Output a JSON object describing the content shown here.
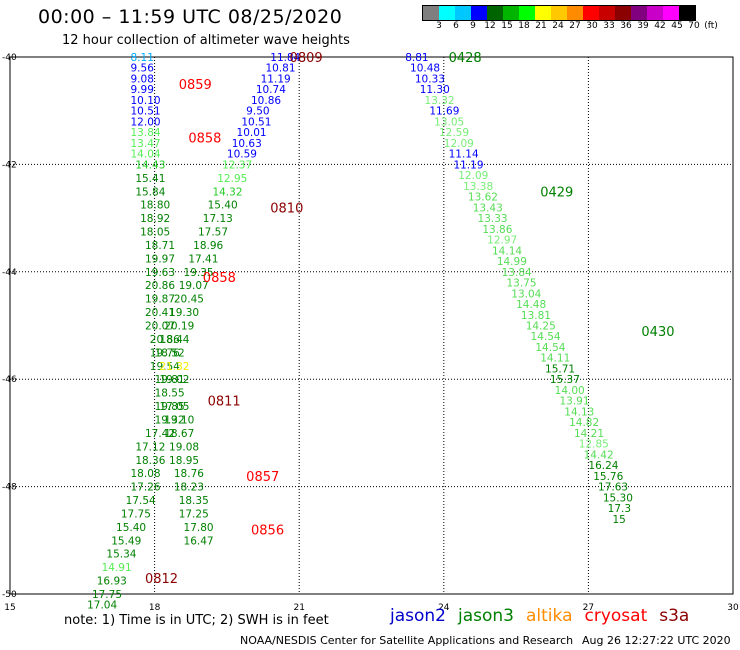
{
  "title": "00:00 – 11:59 UTC 08/25/2020",
  "subtitle": "12 hour collection of altimeter wave heights",
  "colorbar": {
    "colors": [
      "#7f7f7f",
      "#00ffff",
      "#00c8ff",
      "#0000ff",
      "#006400",
      "#00b400",
      "#00ff00",
      "#ffff00",
      "#ffc800",
      "#ff8c00",
      "#ff0000",
      "#c80000",
      "#8b0000",
      "#800080",
      "#c800c8",
      "#ff00ff",
      "#000000"
    ],
    "labels": [
      "3",
      "6",
      "9",
      "12",
      "15",
      "18",
      "21",
      "24",
      "27",
      "30",
      "33",
      "36",
      "39",
      "42",
      "45",
      "70",
      "(ft)"
    ]
  },
  "x_ticks": [
    "15",
    "18",
    "21",
    "24",
    "27",
    "30"
  ],
  "y_ticks": [
    "-40",
    "-42",
    "-44",
    "-46",
    "-48",
    "-50"
  ],
  "passes": [
    {
      "label": "0809",
      "lon": 20.8,
      "lat": -40.0,
      "color": "#8b0000"
    },
    {
      "label": "0859",
      "lon": 18.5,
      "lat": -40.5,
      "color": "#ff0000"
    },
    {
      "label": "0858",
      "lon": 18.7,
      "lat": -41.5,
      "color": "#ff0000"
    },
    {
      "label": "0810",
      "lon": 20.4,
      "lat": -42.8,
      "color": "#8b0000"
    },
    {
      "label": "0858",
      "lon": 19.0,
      "lat": -44.1,
      "color": "#ff0000"
    },
    {
      "label": "0811",
      "lon": 19.1,
      "lat": -46.4,
      "color": "#8b0000"
    },
    {
      "label": "0857",
      "lon": 19.9,
      "lat": -47.8,
      "color": "#ff0000"
    },
    {
      "label": "0856",
      "lon": 20.0,
      "lat": -48.8,
      "color": "#ff0000"
    },
    {
      "label": "0812",
      "lon": 17.8,
      "lat": -49.7,
      "color": "#8b0000"
    },
    {
      "label": "0428",
      "lon": 24.1,
      "lat": -40.0,
      "color": "#008000"
    },
    {
      "label": "0429",
      "lon": 26.0,
      "lat": -42.5,
      "color": "#008000"
    },
    {
      "label": "0430",
      "lon": 28.1,
      "lat": -45.1,
      "color": "#008000"
    }
  ],
  "points": [
    [
      17.5,
      -40.0,
      "8.11",
      "#00aaff"
    ],
    [
      17.5,
      -40.2,
      "9.56",
      "#0000ff"
    ],
    [
      17.5,
      -40.4,
      "9.08",
      "#0000ff"
    ],
    [
      17.5,
      -40.6,
      "9.99",
      "#0000ff"
    ],
    [
      17.5,
      -40.8,
      "10.10",
      "#0000ff"
    ],
    [
      17.5,
      -41.0,
      "10.51",
      "#0000ff"
    ],
    [
      17.5,
      -41.2,
      "12.00",
      "#0000ff"
    ],
    [
      17.5,
      -41.4,
      "13.84",
      "#55ee55"
    ],
    [
      17.5,
      -41.6,
      "13.47",
      "#55ee55"
    ],
    [
      17.5,
      -41.8,
      "14.04",
      "#55ee55"
    ],
    [
      17.6,
      -42.0,
      "14.43",
      "#22cc22"
    ],
    [
      17.6,
      -42.25,
      "15.41",
      "#008000"
    ],
    [
      17.6,
      -42.5,
      "15.84",
      "#008000"
    ],
    [
      17.7,
      -42.75,
      "18.80",
      "#008000"
    ],
    [
      17.7,
      -43.0,
      "18.92",
      "#008000"
    ],
    [
      17.7,
      -43.25,
      "18.05",
      "#008000"
    ],
    [
      17.8,
      -43.5,
      "18.71",
      "#008000"
    ],
    [
      17.8,
      -43.75,
      "19.97",
      "#008000"
    ],
    [
      17.8,
      -44.0,
      "19.63",
      "#008000"
    ],
    [
      17.8,
      -44.25,
      "20.86",
      "#008000"
    ],
    [
      17.8,
      -44.5,
      "19.87",
      "#008000"
    ],
    [
      17.8,
      -44.75,
      "20.41",
      "#008000"
    ],
    [
      17.8,
      -45.0,
      "20.07",
      "#008000"
    ],
    [
      17.9,
      -45.25,
      "20.86",
      "#008000"
    ],
    [
      17.9,
      -45.5,
      "19.76",
      "#008000"
    ],
    [
      17.9,
      -45.75,
      "19.54",
      "#008000"
    ],
    [
      18.0,
      -46.0,
      "19.81",
      "#008000"
    ],
    [
      18.0,
      -46.25,
      "18.55",
      "#008000"
    ],
    [
      18.0,
      -46.5,
      "19.85",
      "#008000"
    ],
    [
      18.0,
      -46.75,
      "19.32",
      "#008000"
    ],
    [
      17.8,
      -47.0,
      "17.42",
      "#008000"
    ],
    [
      17.6,
      -47.25,
      "17.12",
      "#008000"
    ],
    [
      17.6,
      -47.5,
      "18.36",
      "#008000"
    ],
    [
      17.5,
      -47.75,
      "18.08",
      "#008000"
    ],
    [
      17.5,
      -48.0,
      "17.26",
      "#008000"
    ],
    [
      17.4,
      -48.25,
      "17.54",
      "#008000"
    ],
    [
      17.3,
      -48.5,
      "17.75",
      "#008000"
    ],
    [
      17.2,
      -48.75,
      "15.40",
      "#008000"
    ],
    [
      17.1,
      -49.0,
      "15.49",
      "#008000"
    ],
    [
      17.0,
      -49.25,
      "15.34",
      "#008000"
    ],
    [
      16.9,
      -49.5,
      "14.91",
      "#55ee55"
    ],
    [
      16.8,
      -49.75,
      "16.93",
      "#008000"
    ],
    [
      16.7,
      -50.0,
      "17.75",
      "#008000"
    ],
    [
      16.6,
      -50.2,
      "17.04",
      "#008000"
    ],
    [
      20.4,
      -40.0,
      "11.84",
      "#0000ff"
    ],
    [
      20.3,
      -40.2,
      "10.81",
      "#0000ff"
    ],
    [
      20.2,
      -40.4,
      "11.19",
      "#0000ff"
    ],
    [
      20.1,
      -40.6,
      "10.74",
      "#0000ff"
    ],
    [
      20.0,
      -40.8,
      "10.86",
      "#0000ff"
    ],
    [
      19.9,
      -41.0,
      "9.50",
      "#0000ff"
    ],
    [
      19.8,
      -41.2,
      "10.51",
      "#0000ff"
    ],
    [
      19.7,
      -41.4,
      "10.01",
      "#0000ff"
    ],
    [
      19.6,
      -41.6,
      "10.63",
      "#0000ff"
    ],
    [
      19.5,
      -41.8,
      "10.59",
      "#0000ff"
    ],
    [
      19.4,
      -42.0,
      "12.37",
      "#55ee55"
    ],
    [
      19.3,
      -42.25,
      "12.95",
      "#55ee55"
    ],
    [
      19.2,
      -42.5,
      "14.32",
      "#22cc22"
    ],
    [
      19.1,
      -42.75,
      "15.40",
      "#008000"
    ],
    [
      19.0,
      -43.0,
      "17.13",
      "#008000"
    ],
    [
      18.9,
      -43.25,
      "17.57",
      "#008000"
    ],
    [
      18.8,
      -43.5,
      "18.96",
      "#008000"
    ],
    [
      18.7,
      -43.75,
      "17.41",
      "#008000"
    ],
    [
      18.6,
      -44.0,
      "19.35",
      "#008000"
    ],
    [
      18.5,
      -44.25,
      "19.07",
      "#008000"
    ],
    [
      18.4,
      -44.5,
      "20.45",
      "#008000"
    ],
    [
      18.3,
      -44.75,
      "19.30",
      "#008000"
    ],
    [
      18.2,
      -45.0,
      "20.19",
      "#008000"
    ],
    [
      18.1,
      -45.25,
      "18.44",
      "#008000"
    ],
    [
      18.0,
      -45.5,
      "18.52",
      "#008000"
    ],
    [
      18.1,
      -45.75,
      "21.32",
      "#eeee00"
    ],
    [
      18.1,
      -46.0,
      "19.02",
      "#008000"
    ],
    [
      18.1,
      -46.5,
      "17.05",
      "#008000"
    ],
    [
      18.2,
      -46.75,
      "19.10",
      "#008000"
    ],
    [
      18.2,
      -47.0,
      "18.67",
      "#008000"
    ],
    [
      18.3,
      -47.25,
      "19.08",
      "#008000"
    ],
    [
      18.3,
      -47.5,
      "18.95",
      "#008000"
    ],
    [
      18.4,
      -47.75,
      "18.76",
      "#008000"
    ],
    [
      18.4,
      -48.0,
      "18.23",
      "#008000"
    ],
    [
      18.5,
      -48.25,
      "18.35",
      "#008000"
    ],
    [
      18.5,
      -48.5,
      "17.25",
      "#008000"
    ],
    [
      18.6,
      -48.75,
      "17.80",
      "#008000"
    ],
    [
      18.6,
      -49.0,
      "16.47",
      "#008000"
    ],
    [
      23.2,
      -40.0,
      "8.81",
      "#0000ff"
    ],
    [
      23.3,
      -40.2,
      "10.48",
      "#0000ff"
    ],
    [
      23.4,
      -40.4,
      "10.33",
      "#0000ff"
    ],
    [
      23.5,
      -40.6,
      "11.30",
      "#0000ff"
    ],
    [
      23.6,
      -40.8,
      "13.32",
      "#77ee77"
    ],
    [
      23.7,
      -41.0,
      "11.69",
      "#0000ff"
    ],
    [
      23.8,
      -41.2,
      "13.05",
      "#77ee77"
    ],
    [
      23.9,
      -41.4,
      "12.59",
      "#77ee77"
    ],
    [
      24.0,
      -41.6,
      "12.09",
      "#77ee77"
    ],
    [
      24.1,
      -41.8,
      "11.14",
      "#0000ff"
    ],
    [
      24.2,
      -42.0,
      "11.19",
      "#0000ff"
    ],
    [
      24.3,
      -42.2,
      "12.09",
      "#77ee77"
    ],
    [
      24.4,
      -42.4,
      "13.38",
      "#77ee77"
    ],
    [
      24.5,
      -42.6,
      "13.62",
      "#55dd55"
    ],
    [
      24.6,
      -42.8,
      "13.43",
      "#55dd55"
    ],
    [
      24.7,
      -43.0,
      "13.33",
      "#55dd55"
    ],
    [
      24.8,
      -43.2,
      "13.86",
      "#55dd55"
    ],
    [
      24.9,
      -43.4,
      "12.97",
      "#77ee77"
    ],
    [
      25.0,
      -43.6,
      "14.14",
      "#55dd55"
    ],
    [
      25.1,
      -43.8,
      "14.99",
      "#55dd55"
    ],
    [
      25.2,
      -44.0,
      "13.84",
      "#55dd55"
    ],
    [
      25.3,
      -44.2,
      "13.75",
      "#55dd55"
    ],
    [
      25.4,
      -44.4,
      "13.04",
      "#55dd55"
    ],
    [
      25.5,
      -44.6,
      "14.48",
      "#55dd55"
    ],
    [
      25.6,
      -44.8,
      "13.81",
      "#55dd55"
    ],
    [
      25.7,
      -45.0,
      "14.25",
      "#55dd55"
    ],
    [
      25.8,
      -45.2,
      "14.54",
      "#55dd55"
    ],
    [
      25.9,
      -45.4,
      "14.54",
      "#55dd55"
    ],
    [
      26.0,
      -45.6,
      "14.11",
      "#55dd55"
    ],
    [
      26.1,
      -45.8,
      "15.71",
      "#008000"
    ],
    [
      26.2,
      -46.0,
      "15.37",
      "#008000"
    ],
    [
      26.3,
      -46.2,
      "14.00",
      "#55dd55"
    ],
    [
      26.4,
      -46.4,
      "13.91",
      "#55dd55"
    ],
    [
      26.5,
      -46.6,
      "14.13",
      "#55dd55"
    ],
    [
      26.6,
      -46.8,
      "14.82",
      "#55dd55"
    ],
    [
      26.7,
      -47.0,
      "14.21",
      "#55dd55"
    ],
    [
      26.8,
      -47.2,
      "12.85",
      "#77ee77"
    ],
    [
      26.9,
      -47.4,
      "14.42",
      "#55dd55"
    ],
    [
      27.0,
      -47.6,
      "16.24",
      "#008000"
    ],
    [
      27.1,
      -47.8,
      "15.76",
      "#008000"
    ],
    [
      27.2,
      -48.0,
      "17.63",
      "#008000"
    ],
    [
      27.3,
      -48.2,
      "15.30",
      "#008000"
    ],
    [
      27.4,
      -48.4,
      "17.3",
      "#008000"
    ],
    [
      27.5,
      -48.6,
      "15",
      "#008000"
    ]
  ],
  "note": "note:  1) Time is in UTC;  2) SWH is in feet",
  "legend": [
    {
      "label": "jason2",
      "color": "#0000cc"
    },
    {
      "label": "jason3",
      "color": "#008000"
    },
    {
      "label": "altika",
      "color": "#ff8c00"
    },
    {
      "label": "cryosat",
      "color": "#ff0000"
    },
    {
      "label": "s3a",
      "color": "#8b0000"
    }
  ],
  "credit": "NOAA/NESDIS Center for Satellite Applications and Research",
  "timestamp": "Aug 26 12:27:22 UTC 2020"
}
